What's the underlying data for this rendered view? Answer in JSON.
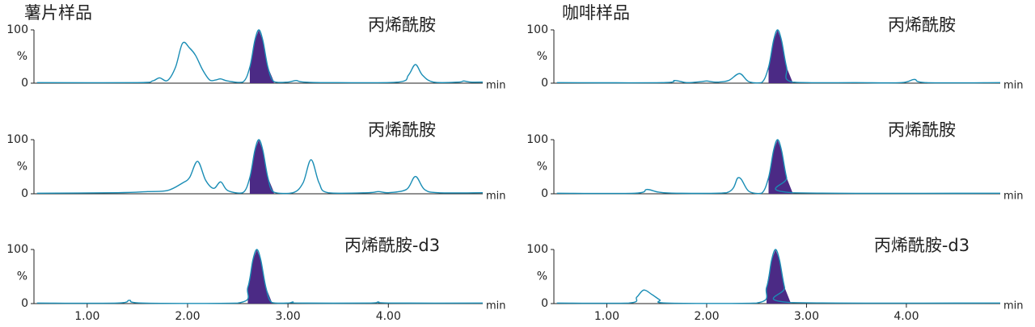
{
  "chart_data": [
    {
      "type": "line",
      "title": "薯片样品",
      "annotation": "丙烯酰胺",
      "x_label": "min",
      "y_label": "%",
      "color": "#1a8db5",
      "fill": {
        "from": 2.6,
        "to": 2.87,
        "color": "#4b2a85"
      },
      "xlim": [
        0.47,
        4.94
      ],
      "ylim": [
        0,
        100
      ],
      "yticks": [
        0,
        100
      ],
      "x": [
        0.5,
        1.5,
        1.65,
        1.72,
        1.8,
        1.88,
        1.95,
        2.02,
        2.08,
        2.15,
        2.22,
        2.28,
        2.33,
        2.4,
        2.55,
        2.62,
        2.67,
        2.71,
        2.75,
        2.8,
        2.86,
        3.0,
        3.08,
        3.16,
        3.5,
        4.1,
        4.2,
        4.27,
        4.34,
        4.45,
        4.7,
        4.75,
        4.82,
        4.94
      ],
      "values": [
        1,
        1,
        4,
        10,
        5,
        30,
        75,
        66,
        52,
        25,
        6,
        6,
        8,
        4,
        2,
        30,
        80,
        100,
        80,
        30,
        3,
        2,
        5,
        2,
        1,
        2,
        15,
        35,
        15,
        2,
        2,
        4,
        2,
        2
      ]
    },
    {
      "type": "line",
      "annotation": "丙烯酰胺",
      "x_label": "min",
      "y_label": "%",
      "color": "#1a8db5",
      "fill": {
        "from": 2.6,
        "to": 2.87,
        "color": "#4b2a85"
      },
      "xlim": [
        0.47,
        4.94
      ],
      "ylim": [
        0,
        100
      ],
      "yticks": [
        0,
        100
      ],
      "x": [
        0.5,
        1.3,
        1.6,
        1.8,
        1.95,
        2.02,
        2.1,
        2.18,
        2.26,
        2.33,
        2.4,
        2.55,
        2.62,
        2.67,
        2.71,
        2.75,
        2.8,
        2.86,
        3.05,
        3.15,
        3.23,
        3.31,
        3.4,
        3.8,
        3.9,
        4.0,
        4.18,
        4.27,
        4.36,
        4.5,
        4.94
      ],
      "values": [
        1,
        2,
        4,
        6,
        20,
        30,
        60,
        25,
        10,
        22,
        6,
        2,
        30,
        80,
        100,
        80,
        30,
        3,
        2,
        20,
        63,
        20,
        2,
        2,
        4,
        2,
        8,
        32,
        8,
        2,
        2
      ]
    },
    {
      "type": "line",
      "annotation": "丙烯酰胺-d3",
      "x_label": "min",
      "y_label": "%",
      "color": "#1a8db5",
      "fill": {
        "from": 2.58,
        "to": 2.85,
        "color": "#4b2a85"
      },
      "xlim": [
        0.47,
        4.94
      ],
      "ylim": [
        0,
        100
      ],
      "yticks": [
        0,
        100
      ],
      "xticks": [
        {
          "value": 1,
          "label": "1.00"
        },
        {
          "value": 2,
          "label": "2.00"
        },
        {
          "value": 3,
          "label": "3.00"
        },
        {
          "value": 4,
          "label": "4.00"
        }
      ],
      "x": [
        0.5,
        1.3,
        1.42,
        1.55,
        2.5,
        2.6,
        2.65,
        2.69,
        2.73,
        2.78,
        2.84,
        3.0,
        3.05,
        3.1,
        3.8,
        3.9,
        4.0,
        4.94
      ],
      "values": [
        1,
        1,
        6,
        1,
        1,
        30,
        80,
        100,
        80,
        30,
        2,
        1,
        3,
        1,
        1,
        3,
        1,
        1
      ]
    },
    {
      "type": "line",
      "title": "咖啡样品",
      "annotation": "丙烯酰胺",
      "x_label": "min",
      "y_label": "%",
      "color": "#1a8db5",
      "fill": {
        "from": 2.6,
        "to": 2.87,
        "color": "#4b2a85"
      },
      "xlim": [
        0.47,
        4.94
      ],
      "ylim": [
        0,
        100
      ],
      "yticks": [
        0,
        100
      ],
      "x": [
        0.5,
        1.55,
        1.68,
        1.8,
        1.95,
        2.0,
        2.1,
        2.22,
        2.33,
        2.42,
        2.55,
        2.62,
        2.67,
        2.71,
        2.75,
        2.8,
        2.86,
        3.5,
        3.95,
        4.08,
        4.2,
        4.94
      ],
      "values": [
        1,
        1,
        5,
        1,
        3,
        4,
        2,
        5,
        18,
        3,
        1,
        30,
        80,
        100,
        80,
        30,
        2,
        1,
        1,
        7,
        1,
        1
      ]
    },
    {
      "type": "line",
      "annotation": "丙烯酰胺",
      "x_label": "min",
      "y_label": "%",
      "color": "#1a8db5",
      "fill": {
        "from": 2.6,
        "to": 2.87,
        "color": "#4b2a85"
      },
      "xlim": [
        0.47,
        4.94
      ],
      "ylim": [
        0,
        100
      ],
      "yticks": [
        0,
        100
      ],
      "x": [
        0.5,
        1.28,
        1.4,
        1.52,
        1.7,
        2.2,
        2.32,
        2.42,
        2.55,
        2.62,
        2.67,
        2.71,
        2.75,
        2.8,
        2.86,
        4.94
      ],
      "values": [
        1,
        1,
        8,
        3,
        1,
        2,
        30,
        5,
        1,
        30,
        80,
        100,
        80,
        30,
        2,
        1
      ]
    },
    {
      "type": "line",
      "annotation": "丙烯酰胺-d3",
      "x_label": "min",
      "y_label": "%",
      "color": "#1a8db5",
      "fill": {
        "from": 2.58,
        "to": 2.85,
        "color": "#4b2a85"
      },
      "xlim": [
        0.47,
        4.94
      ],
      "ylim": [
        0,
        100
      ],
      "yticks": [
        0,
        100
      ],
      "xticks": [
        {
          "value": 1,
          "label": "1.00"
        },
        {
          "value": 2,
          "label": "2.00"
        },
        {
          "value": 3,
          "label": "3.00"
        },
        {
          "value": 4,
          "label": "4.00"
        }
      ],
      "x": [
        0.5,
        1.22,
        1.3,
        1.37,
        1.45,
        1.53,
        1.6,
        2.5,
        2.6,
        2.65,
        2.69,
        2.73,
        2.78,
        2.84,
        4.94
      ],
      "values": [
        1,
        1,
        12,
        25,
        17,
        7,
        1,
        1,
        30,
        80,
        100,
        80,
        30,
        2,
        1
      ]
    }
  ]
}
